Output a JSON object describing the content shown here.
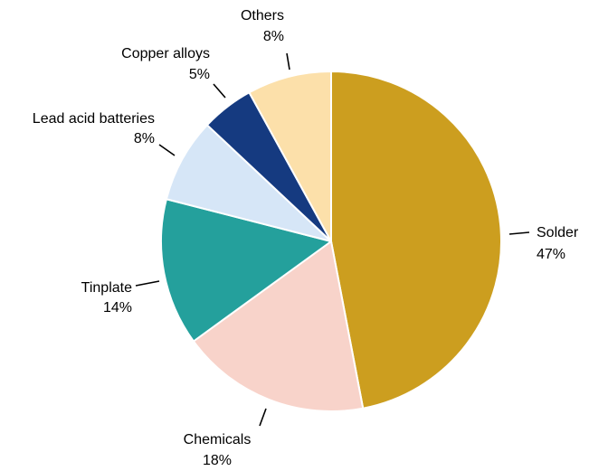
{
  "chart_data": {
    "type": "pie",
    "title": "",
    "slices": [
      {
        "label": "Solder",
        "value": 47,
        "value_label": "47%",
        "color": "#CC9E1F"
      },
      {
        "label": "Chemicals",
        "value": 18,
        "value_label": "18%",
        "color": "#F8D3CA"
      },
      {
        "label": "Tinplate",
        "value": 14,
        "value_label": "14%",
        "color": "#24A09C"
      },
      {
        "label": "Lead acid batteries",
        "value": 8,
        "value_label": "8%",
        "color": "#D6E6F7"
      },
      {
        "label": "Copper alloys",
        "value": 5,
        "value_label": "5%",
        "color": "#153A80"
      },
      {
        "label": "Others",
        "value": 8,
        "value_label": "8%",
        "color": "#FCE0AA"
      }
    ],
    "start": "12 o'clock",
    "direction": "clockwise",
    "legend": "none",
    "slice_border_color": "#ffffff",
    "leader_line_color": "#000000"
  }
}
